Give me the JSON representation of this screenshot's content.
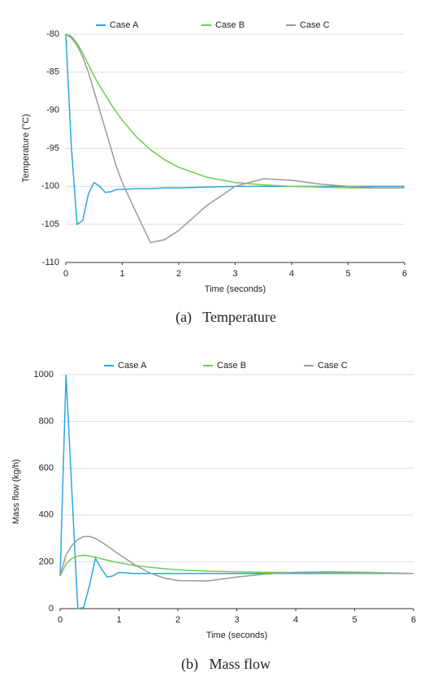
{
  "chart_data": [
    {
      "type": "line",
      "caption": "(a)   Temperature",
      "xlabel": "Time (seconds)",
      "ylabel": "Temperature (°C)",
      "x": [
        0,
        0.1,
        0.2,
        0.3,
        0.4,
        0.5,
        0.6,
        0.7,
        0.8,
        0.9,
        1,
        1.25,
        1.5,
        1.75,
        2,
        2.5,
        3,
        3.5,
        4,
        4.5,
        5,
        5.5,
        6
      ],
      "series": [
        {
          "name": "Case A",
          "color": "#2aa7e0",
          "values": [
            -80,
            -95,
            -105,
            -104.5,
            -101,
            -99.5,
            -100,
            -100.8,
            -100.7,
            -100.4,
            -100.4,
            -100.3,
            -100.3,
            -100.2,
            -100.2,
            -100.1,
            -100,
            -100,
            -100,
            -100,
            -100,
            -100,
            -100
          ]
        },
        {
          "name": "Case B",
          "color": "#6bd04a",
          "values": [
            -80,
            -80.3,
            -81.2,
            -82.5,
            -84,
            -85.5,
            -86.8,
            -88,
            -89.2,
            -90.3,
            -91.3,
            -93.5,
            -95.2,
            -96.5,
            -97.5,
            -98.8,
            -99.5,
            -99.8,
            -100,
            -100.1,
            -100.2,
            -100.2,
            -100.2
          ]
        },
        {
          "name": "Case C",
          "color": "#9a9a9a",
          "values": [
            -80,
            -80.5,
            -81.5,
            -83,
            -85,
            -87.5,
            -90,
            -92.5,
            -95,
            -97.5,
            -99.5,
            -103.5,
            -107.4,
            -107,
            -105.8,
            -102.5,
            -100,
            -99,
            -99.2,
            -99.7,
            -100,
            -100.2,
            -100.2
          ]
        }
      ],
      "xlim": [
        0,
        6
      ],
      "xticks": [
        0,
        1,
        2,
        3,
        4,
        5,
        6
      ],
      "ylim": [
        -110,
        -80
      ],
      "yticks": [
        -110,
        -105,
        -100,
        -95,
        -90,
        -85,
        -80
      ],
      "grid": true,
      "legend": "top"
    },
    {
      "type": "line",
      "caption": "(b)   Mass flow",
      "xlabel": "Time (seconds)",
      "ylabel": "Mass flow (kg/h)",
      "x": [
        0,
        0.1,
        0.2,
        0.3,
        0.4,
        0.5,
        0.6,
        0.7,
        0.8,
        0.9,
        1,
        1.25,
        1.5,
        1.75,
        2,
        2.5,
        3,
        3.5,
        4,
        4.5,
        5,
        5.5,
        6
      ],
      "series": [
        {
          "name": "Case A",
          "color": "#2aa7e0",
          "values": [
            140,
            1000,
            500,
            0,
            5,
            100,
            215,
            170,
            135,
            140,
            155,
            150,
            150,
            150,
            150,
            150,
            150,
            150,
            150,
            150,
            150,
            150,
            150
          ]
        },
        {
          "name": "Case B",
          "color": "#6bd04a",
          "values": [
            140,
            190,
            215,
            225,
            228,
            225,
            220,
            213,
            207,
            201,
            196,
            185,
            177,
            171,
            166,
            160,
            157,
            155,
            154,
            153,
            152,
            151,
            150
          ]
        },
        {
          "name": "Case C",
          "color": "#9a9a9a",
          "values": [
            140,
            230,
            270,
            295,
            308,
            308,
            300,
            285,
            268,
            250,
            232,
            190,
            155,
            132,
            120,
            118,
            135,
            148,
            155,
            157,
            156,
            153,
            150
          ]
        }
      ],
      "xlim": [
        0,
        6
      ],
      "xticks": [
        0,
        1,
        2,
        3,
        4,
        5,
        6
      ],
      "ylim": [
        0,
        1000
      ],
      "yticks": [
        0,
        200,
        400,
        600,
        800,
        1000
      ],
      "grid": true,
      "legend": "top"
    }
  ]
}
